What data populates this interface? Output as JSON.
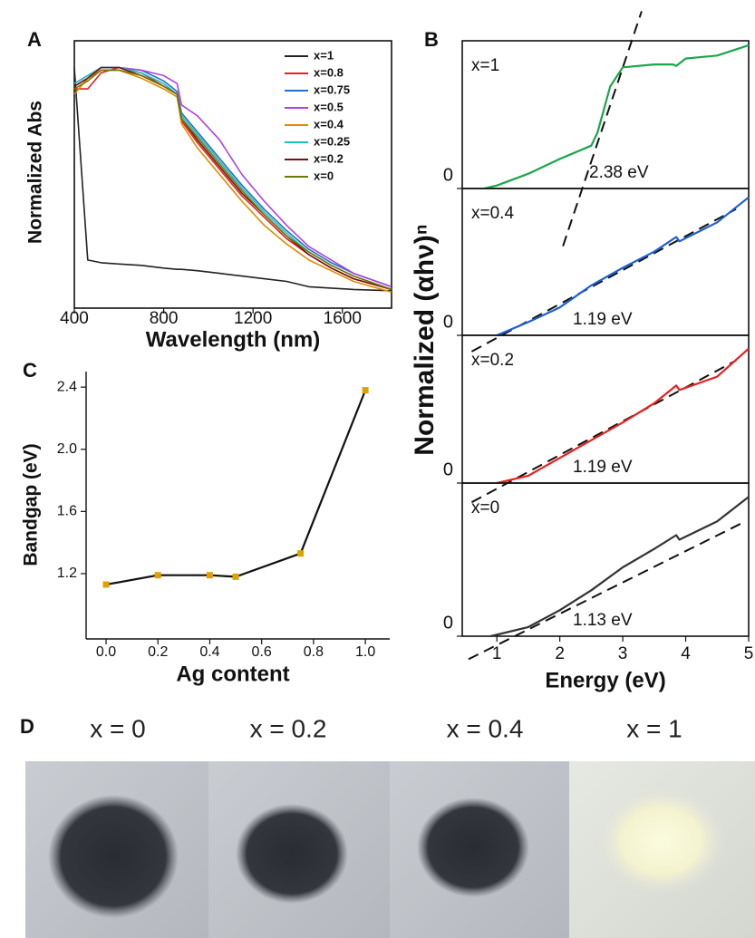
{
  "chart_data": [
    {
      "type": "line",
      "panel_label": "A",
      "xlabel": "Wavelength (nm)",
      "ylabel": "Normalized Abs",
      "x": [
        400,
        460,
        520,
        600,
        700,
        800,
        860,
        880,
        950,
        1050,
        1150,
        1250,
        1350,
        1450,
        1550,
        1650,
        1820
      ],
      "xlim": [
        400,
        1820
      ],
      "xticks": [
        400,
        800,
        1200,
        1600
      ],
      "ylim": [
        0,
        1
      ],
      "legend": "upper right",
      "series": [
        {
          "name": "x=1",
          "color": "#222222",
          "values": [
            0.9,
            0.18,
            0.17,
            0.165,
            0.16,
            0.15,
            0.145,
            0.145,
            0.14,
            0.13,
            0.12,
            0.11,
            0.1,
            0.08,
            0.075,
            0.07,
            0.065
          ]
        },
        {
          "name": "x=0.8",
          "color": "#e8201f",
          "values": [
            0.82,
            0.82,
            0.88,
            0.9,
            0.88,
            0.83,
            0.8,
            0.7,
            0.62,
            0.52,
            0.42,
            0.34,
            0.26,
            0.2,
            0.15,
            0.11,
            0.07
          ]
        },
        {
          "name": "x=0.75",
          "color": "#1f6fd0",
          "values": [
            0.84,
            0.87,
            0.9,
            0.9,
            0.89,
            0.85,
            0.81,
            0.73,
            0.66,
            0.56,
            0.46,
            0.37,
            0.29,
            0.22,
            0.17,
            0.13,
            0.08
          ]
        },
        {
          "name": "x=0.5",
          "color": "#b040e0",
          "values": [
            0.83,
            0.86,
            0.9,
            0.9,
            0.89,
            0.87,
            0.84,
            0.76,
            0.72,
            0.63,
            0.5,
            0.4,
            0.31,
            0.23,
            0.18,
            0.13,
            0.08
          ]
        },
        {
          "name": "x=0.4",
          "color": "#e08a00",
          "values": [
            0.8,
            0.86,
            0.89,
            0.89,
            0.86,
            0.82,
            0.79,
            0.69,
            0.6,
            0.5,
            0.4,
            0.31,
            0.24,
            0.18,
            0.14,
            0.1,
            0.06
          ]
        },
        {
          "name": "x=0.25",
          "color": "#20c0c0",
          "values": [
            0.84,
            0.87,
            0.9,
            0.9,
            0.88,
            0.84,
            0.8,
            0.72,
            0.65,
            0.55,
            0.45,
            0.36,
            0.28,
            0.21,
            0.16,
            0.12,
            0.07
          ]
        },
        {
          "name": "x=0.2",
          "color": "#7a1010",
          "values": [
            0.83,
            0.86,
            0.9,
            0.9,
            0.87,
            0.83,
            0.8,
            0.71,
            0.63,
            0.53,
            0.43,
            0.35,
            0.27,
            0.2,
            0.15,
            0.11,
            0.07
          ]
        },
        {
          "name": "x=0",
          "color": "#6b7a00",
          "values": [
            0.82,
            0.85,
            0.89,
            0.89,
            0.87,
            0.83,
            0.8,
            0.71,
            0.64,
            0.54,
            0.44,
            0.35,
            0.27,
            0.21,
            0.16,
            0.12,
            0.07
          ]
        }
      ]
    },
    {
      "type": "line",
      "panel_label": "B",
      "ylabel": "Normalized (αhν)ⁿ",
      "sample_label": "x=1",
      "annotation": "2.38 eV",
      "x": [
        0.8,
        1.0,
        1.5,
        2.0,
        2.5,
        2.6,
        2.8,
        3.0,
        3.5,
        3.8,
        3.85,
        4.0,
        4.5,
        5.0
      ],
      "xlim": [
        0.45,
        5
      ],
      "ylim": [
        0,
        1
      ],
      "yticks": [
        0
      ],
      "series": [
        {
          "color": "#1aa64a",
          "values": [
            0,
            0.02,
            0.1,
            0.2,
            0.29,
            0.38,
            0.69,
            0.82,
            0.84,
            0.84,
            0.83,
            0.88,
            0.9,
            0.97
          ]
        }
      ],
      "fit": {
        "x": [
          2.05,
          3.3
        ],
        "values": [
          -0.39,
          1.2
        ]
      }
    },
    {
      "type": "line",
      "sample_label": "x=0.4",
      "annotation": "1.19 eV",
      "x": [
        1.0,
        1.5,
        2.0,
        2.5,
        3.0,
        3.5,
        3.85,
        3.9,
        4.5,
        5.0
      ],
      "xlim": [
        0.45,
        5
      ],
      "ylim": [
        0,
        1
      ],
      "yticks": [
        0
      ],
      "series": [
        {
          "color": "#1e5fd6",
          "values": [
            0,
            0.09,
            0.19,
            0.34,
            0.46,
            0.57,
            0.67,
            0.64,
            0.77,
            0.94
          ]
        }
      ],
      "fit": {
        "x": [
          0.6,
          4.8
        ],
        "values": [
          -0.11,
          0.86
        ]
      }
    },
    {
      "type": "line",
      "sample_label": "x=0.2",
      "annotation": "1.19 eV",
      "x": [
        1.0,
        1.5,
        2.0,
        2.5,
        3.0,
        3.5,
        3.85,
        3.9,
        4.5,
        5.0
      ],
      "xlim": [
        0.45,
        5
      ],
      "ylim": [
        0,
        1
      ],
      "yticks": [
        0
      ],
      "series": [
        {
          "color": "#e8201f",
          "values": [
            0,
            0.05,
            0.17,
            0.29,
            0.41,
            0.54,
            0.66,
            0.63,
            0.72,
            0.91
          ]
        }
      ],
      "fit": {
        "x": [
          0.6,
          4.8
        ],
        "values": [
          -0.13,
          0.83
        ]
      }
    },
    {
      "type": "line",
      "sample_label": "x=0",
      "annotation": "1.13 eV",
      "xlabel": "Energy (eV)",
      "x": [
        0.9,
        1.5,
        2.0,
        2.5,
        3.0,
        3.5,
        3.85,
        3.9,
        4.5,
        5.0
      ],
      "xlim": [
        0.45,
        5
      ],
      "xticks": [
        1,
        2,
        3,
        4,
        5
      ],
      "ylim": [
        0,
        1
      ],
      "yticks": [
        0
      ],
      "series": [
        {
          "color": "#333333",
          "values": [
            0,
            0.06,
            0.17,
            0.3,
            0.45,
            0.57,
            0.66,
            0.63,
            0.75,
            0.91
          ]
        }
      ],
      "fit": {
        "x": [
          0.55,
          4.95
        ],
        "values": [
          -0.15,
          0.75
        ]
      }
    },
    {
      "type": "line",
      "panel_label": "C",
      "xlabel": "Ag content",
      "ylabel": "Bandgap (eV)",
      "markers": true,
      "x": [
        0,
        0.2,
        0.4,
        0.5,
        0.75,
        1
      ],
      "xlim": [
        -0.077,
        1.094
      ],
      "xticks": [
        {
          "value": 0,
          "label": "0.0"
        },
        0.2,
        0.4,
        0.6,
        0.8,
        {
          "value": 1,
          "label": "1.0"
        }
      ],
      "ylim": [
        0.78,
        2.5
      ],
      "yticks": [
        1.2,
        1.6,
        {
          "value": 2,
          "label": "2.0"
        },
        2.4
      ],
      "series": [
        {
          "color": "#111111",
          "marker_color": "#e0a000",
          "values": [
            1.13,
            1.19,
            1.19,
            1.18,
            1.33,
            2.38
          ]
        }
      ]
    }
  ],
  "panel_d": {
    "label": "D",
    "captions": [
      "x = 0",
      "x = 0.2",
      "x = 0.4",
      "x = 1"
    ]
  }
}
